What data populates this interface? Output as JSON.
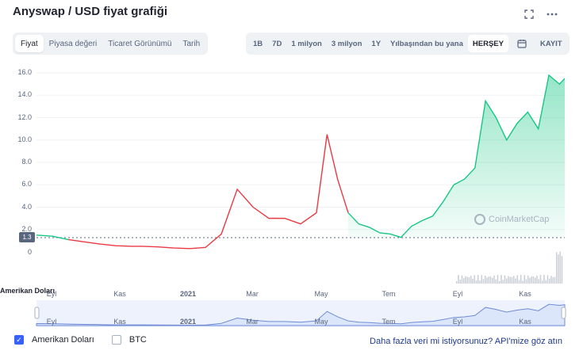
{
  "title": "Anyswap / USD fiyat grafiği",
  "header_icons": {
    "fullscreen": "expand-icon",
    "more": "more-horizontal-icon"
  },
  "tabs": [
    {
      "label": "Fiyat",
      "active": true
    },
    {
      "label": "Piyasa değeri",
      "active": false
    },
    {
      "label": "Ticaret Görünümü",
      "active": false
    },
    {
      "label": "Tarih",
      "active": false
    }
  ],
  "ranges": [
    {
      "label": "1B",
      "active": false
    },
    {
      "label": "7D",
      "active": false
    },
    {
      "label": "1 milyon",
      "active": false
    },
    {
      "label": "3 milyon",
      "active": false
    },
    {
      "label": "1Y",
      "active": false
    },
    {
      "label": "Yılbaşından bu yana",
      "active": false
    },
    {
      "label": "HERŞEY",
      "active": true
    }
  ],
  "calendar_icon": "calendar-icon",
  "log_label": "KAYIT",
  "price_tag": "1.3",
  "volume_label": "Amerikan Doları",
  "volume_zero": "0",
  "watermark": "CoinMarketCap",
  "legend": [
    {
      "label": "Amerikan Doları",
      "checked": true
    },
    {
      "label": "BTC",
      "checked": false
    }
  ],
  "api_text": "Daha fazla veri mi istiyorsunuz? API'mize göz atın",
  "colors": {
    "up": "#16c784",
    "down": "#ea3943",
    "accent": "#3861fb",
    "nav_line": "#6f8bd6"
  },
  "chart_data": {
    "type": "line",
    "ylim": [
      0,
      16.5
    ],
    "yticks": [
      "16.0",
      "14.0",
      "12.0",
      "10.0",
      "8.0",
      "6.0",
      "4.0",
      "2.0"
    ],
    "baseline": 1.3,
    "xticks": [
      "Eyl",
      "Kas",
      "2021",
      "Mar",
      "May",
      "Tem",
      "Eyl",
      "Kas"
    ],
    "nav_xticks": [
      "Eyl",
      "Kas",
      "2021",
      "Mar",
      "May",
      "Tem",
      "Eyl",
      "Kas"
    ],
    "x": [
      0,
      3,
      6,
      9,
      12,
      15,
      18,
      20,
      23,
      26,
      29,
      32,
      35,
      38,
      41,
      44,
      47,
      50,
      53,
      55,
      57,
      59,
      61,
      63,
      65,
      67,
      69,
      71,
      73,
      75,
      77,
      79,
      81,
      83,
      85,
      87,
      89,
      91,
      93,
      95,
      97,
      99,
      100
    ],
    "values": [
      1.5,
      1.4,
      1.1,
      0.9,
      0.7,
      0.55,
      0.5,
      0.5,
      0.45,
      0.35,
      0.3,
      0.4,
      1.6,
      5.6,
      4.0,
      3.0,
      3.0,
      2.5,
      3.5,
      10.5,
      6.5,
      3.5,
      2.5,
      2.2,
      1.7,
      1.6,
      1.3,
      2.3,
      2.8,
      3.2,
      4.5,
      6.0,
      6.5,
      7.5,
      13.5,
      12.0,
      10.0,
      11.5,
      12.5,
      11.0,
      15.8,
      15.0,
      15.5
    ]
  }
}
